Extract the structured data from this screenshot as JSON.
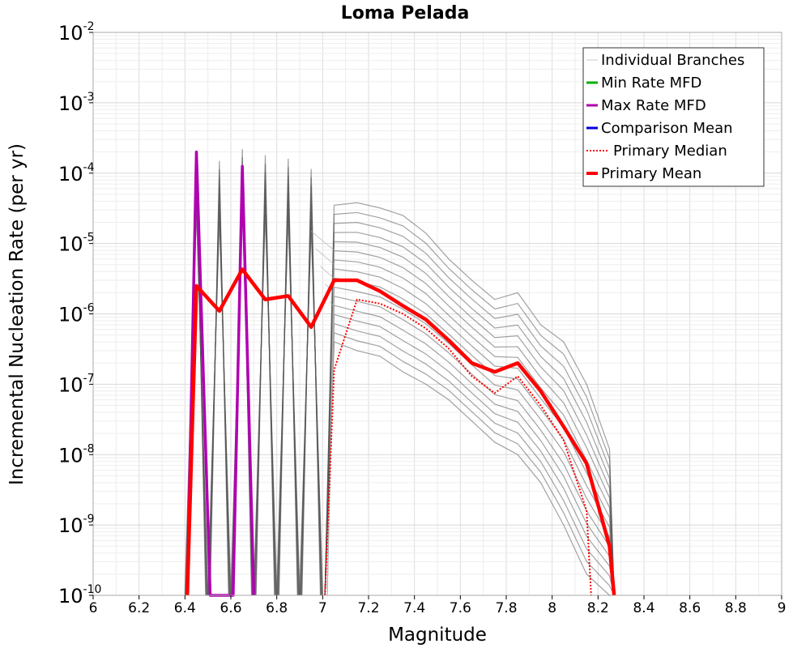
{
  "chart_data": {
    "type": "line",
    "title": "Loma Pelada",
    "xlabel": "Magnitude",
    "ylabel": "Incremental Nucleation Rate (per yr)",
    "xlim": [
      6,
      9
    ],
    "ylim": [
      1e-10,
      0.01
    ],
    "y_scale": "log",
    "grid": true,
    "legend_position": "top-right",
    "x_ticks": [
      "6",
      "6.2",
      "6.4",
      "6.6",
      "6.8",
      "7",
      "7.2",
      "7.4",
      "7.6",
      "7.8",
      "8",
      "8.2",
      "8.4",
      "8.6",
      "8.8",
      "9"
    ],
    "y_ticks": [
      {
        "base": "10",
        "exp": "-10"
      },
      {
        "base": "10",
        "exp": "-9"
      },
      {
        "base": "10",
        "exp": "-8"
      },
      {
        "base": "10",
        "exp": "-7"
      },
      {
        "base": "10",
        "exp": "-6"
      },
      {
        "base": "10",
        "exp": "-5"
      },
      {
        "base": "10",
        "exp": "-4"
      },
      {
        "base": "10",
        "exp": "-3"
      },
      {
        "base": "10",
        "exp": "-2"
      }
    ],
    "legend": [
      {
        "label": "Individual Branches",
        "color": "#c8c8c8",
        "style": "thin"
      },
      {
        "label": "Min Rate MFD",
        "color": "#00b000",
        "style": "solid"
      },
      {
        "label": "Max Rate MFD",
        "color": "#b000b0",
        "style": "solid"
      },
      {
        "label": "Comparison Mean",
        "color": "#0000dd",
        "style": "solid"
      },
      {
        "label": "Primary Median",
        "color": "#ff0000",
        "style": "dotted"
      },
      {
        "label": "Primary Mean",
        "color": "#ff0000",
        "style": "thick"
      }
    ],
    "series": [
      {
        "name": "Max Rate MFD",
        "color": "#b000b0",
        "points": [
          [
            6.41,
            1e-10
          ],
          [
            6.45,
            0.0002
          ],
          [
            6.51,
            1e-10
          ],
          [
            6.61,
            1e-10
          ],
          [
            6.65,
            0.000125
          ],
          [
            6.7,
            1e-10
          ]
        ]
      },
      {
        "name": "Min Rate MFD",
        "color": "#00b000",
        "points": []
      },
      {
        "name": "Comparison Mean",
        "color": "#0000dd",
        "points": []
      },
      {
        "name": "Primary Median",
        "color": "#ff0000",
        "points": [
          [
            7.01,
            1e-10
          ],
          [
            7.05,
            1.6e-07
          ],
          [
            7.15,
            1.6e-06
          ],
          [
            7.25,
            1.4e-06
          ],
          [
            7.35,
            1e-06
          ],
          [
            7.45,
            6.2e-07
          ],
          [
            7.55,
            3.2e-07
          ],
          [
            7.65,
            1.3e-07
          ],
          [
            7.75,
            7.5e-08
          ],
          [
            7.85,
            1.3e-07
          ],
          [
            7.95,
            5e-08
          ],
          [
            8.05,
            1.6e-08
          ],
          [
            8.15,
            1.6e-09
          ],
          [
            8.17,
            1e-10
          ]
        ]
      },
      {
        "name": "Primary Mean",
        "color": "#ff0000",
        "points": [
          [
            6.41,
            1e-10
          ],
          [
            6.45,
            2.5e-06
          ],
          [
            6.55,
            1.1e-06
          ],
          [
            6.65,
            4.3e-06
          ],
          [
            6.75,
            1.6e-06
          ],
          [
            6.85,
            1.8e-06
          ],
          [
            6.95,
            6.5e-07
          ],
          [
            7.05,
            3e-06
          ],
          [
            7.15,
            3e-06
          ],
          [
            7.25,
            2.1e-06
          ],
          [
            7.35,
            1.3e-06
          ],
          [
            7.45,
            8.3e-07
          ],
          [
            7.55,
            4.2e-07
          ],
          [
            7.65,
            2e-07
          ],
          [
            7.75,
            1.5e-07
          ],
          [
            7.85,
            2e-07
          ],
          [
            7.95,
            8e-08
          ],
          [
            8.05,
            2.5e-08
          ],
          [
            8.15,
            7.5e-09
          ],
          [
            8.25,
            5e-10
          ],
          [
            8.27,
            1e-10
          ]
        ]
      }
    ],
    "branch_envelope": {
      "name": "Individual Branches",
      "color": "#555555",
      "spike_peaks": [
        [
          6.45,
          0.0002
        ],
        [
          6.55,
          0.00015
        ],
        [
          6.65,
          0.00022
        ],
        [
          6.75,
          0.00018
        ],
        [
          6.85,
          0.00016
        ],
        [
          6.95,
          0.000115
        ]
      ],
      "upper": [
        [
          7.05,
          3.5e-05
        ],
        [
          7.15,
          3.8e-05
        ],
        [
          7.25,
          3.2e-05
        ],
        [
          7.35,
          2.5e-05
        ],
        [
          7.45,
          1.4e-05
        ],
        [
          7.55,
          6e-06
        ],
        [
          7.65,
          3e-06
        ],
        [
          7.75,
          1.6e-06
        ],
        [
          7.85,
          2e-06
        ],
        [
          7.95,
          7e-07
        ],
        [
          8.05,
          4e-07
        ],
        [
          8.15,
          1e-07
        ],
        [
          8.25,
          1.2e-08
        ]
      ],
      "lower": [
        [
          7.05,
          4e-07
        ],
        [
          7.15,
          3e-07
        ],
        [
          7.25,
          2.5e-07
        ],
        [
          7.35,
          1.5e-07
        ],
        [
          7.45,
          1e-07
        ],
        [
          7.55,
          6e-08
        ],
        [
          7.65,
          3e-08
        ],
        [
          7.75,
          1.5e-08
        ],
        [
          7.85,
          1e-08
        ],
        [
          7.95,
          4e-09
        ],
        [
          8.05,
          1e-09
        ],
        [
          8.15,
          2e-10
        ],
        [
          8.25,
          1e-10
        ]
      ]
    }
  }
}
